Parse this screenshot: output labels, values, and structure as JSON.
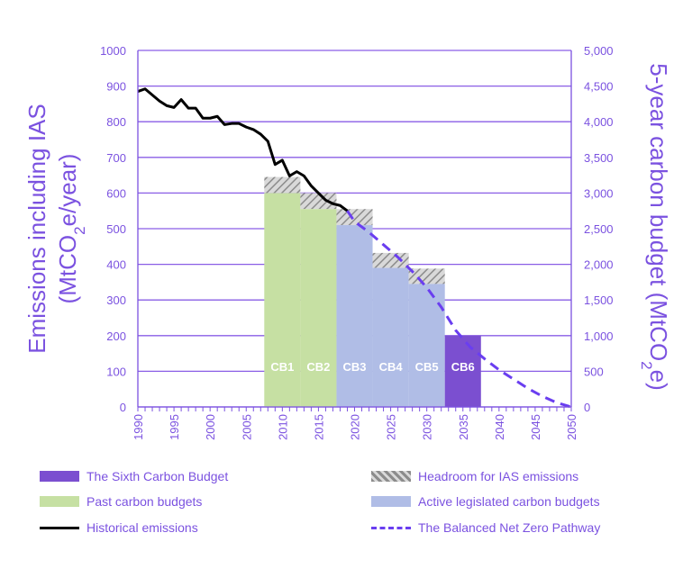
{
  "chart_data": {
    "type": "bar",
    "x_axis": {
      "min": 1990,
      "max": 2050,
      "step": 5,
      "tick_labels": [
        "1990",
        "1995",
        "2000",
        "2005",
        "2010",
        "2015",
        "2020",
        "2025",
        "2030",
        "2035",
        "2040",
        "2045",
        "2050"
      ]
    },
    "y_left": {
      "label_line1": "Emissions including IAS",
      "label_line2_pre": "(MtCO",
      "label_line2_sub": "2",
      "label_line2_post": "e/year)",
      "min": 0,
      "max": 1000,
      "step": 100,
      "tick_labels": [
        "0",
        "100",
        "200",
        "300",
        "400",
        "500",
        "600",
        "700",
        "800",
        "900",
        "1000"
      ]
    },
    "y_right": {
      "label_pre": "5-year carbon budget (MtCO",
      "label_sub": "2",
      "label_post": "e)",
      "min": 0,
      "max": 5000,
      "step": 500,
      "tick_labels": [
        "0",
        "500",
        "1,000",
        "1,500",
        "2,000",
        "2,500",
        "3,000",
        "3,500",
        "4,000",
        "4,500",
        "5,000"
      ]
    },
    "grid": true,
    "budgets": [
      {
        "label": "CB1",
        "start": 2008,
        "end": 2012,
        "value": 600,
        "headroom": 645,
        "category": "past"
      },
      {
        "label": "CB2",
        "start": 2013,
        "end": 2017,
        "value": 555,
        "headroom": 600,
        "category": "past"
      },
      {
        "label": "CB3",
        "start": 2018,
        "end": 2022,
        "value": 510,
        "headroom": 555,
        "category": "active"
      },
      {
        "label": "CB4",
        "start": 2023,
        "end": 2027,
        "value": 390,
        "headroom": 432,
        "category": "active"
      },
      {
        "label": "CB5",
        "start": 2028,
        "end": 2032,
        "value": 345,
        "headroom": 388,
        "category": "active"
      },
      {
        "label": "CB6",
        "start": 2033,
        "end": 2037,
        "value": 200,
        "headroom": 200,
        "category": "sixth"
      }
    ],
    "historical_emissions": {
      "x": [
        1990,
        1991,
        1992,
        1993,
        1994,
        1995,
        1996,
        1997,
        1998,
        1999,
        2000,
        2001,
        2002,
        2003,
        2004,
        2005,
        2006,
        2007,
        2008,
        2009,
        2010,
        2011,
        2012,
        2013,
        2014,
        2015,
        2016,
        2017,
        2018,
        2019
      ],
      "y": [
        885,
        892,
        875,
        858,
        845,
        840,
        862,
        838,
        838,
        810,
        810,
        815,
        792,
        795,
        795,
        785,
        778,
        765,
        745,
        680,
        692,
        648,
        660,
        648,
        620,
        600,
        580,
        570,
        565,
        550
      ]
    },
    "balanced_net_zero_pathway": {
      "x": [
        2019,
        2020,
        2022,
        2024,
        2026,
        2028,
        2030,
        2032,
        2034,
        2036,
        2038,
        2040,
        2042,
        2044,
        2046,
        2048,
        2050
      ],
      "y": [
        550,
        520,
        490,
        455,
        420,
        380,
        335,
        280,
        215,
        168,
        135,
        104,
        78,
        52,
        30,
        12,
        0
      ]
    },
    "legend": [
      {
        "label": "The Sixth Carbon Budget",
        "kind": "swatch",
        "color": "#7b4fd0"
      },
      {
        "label": "Headroom for IAS emissions",
        "kind": "hatch"
      },
      {
        "label": "Past carbon budgets",
        "kind": "swatch",
        "color": "#c6e0a3"
      },
      {
        "label": "Active legislated carbon budgets",
        "kind": "swatch",
        "color": "#b0bde6"
      },
      {
        "label": "Historical emissions",
        "kind": "line",
        "color": "#000000"
      },
      {
        "label": "The Balanced Net Zero Pathway",
        "kind": "dash",
        "color": "#6a3ef0"
      }
    ],
    "colors": {
      "axis": "#7b52e0",
      "grid": "#8a5ee6",
      "past": "#c6e0a3",
      "active": "#b0bde6",
      "sixth": "#7b4fd0",
      "hatch_fg": "#8c8c8c",
      "hatch_bg": "#d9d9d9",
      "historical": "#000000",
      "pathway": "#6a3ef0"
    }
  }
}
